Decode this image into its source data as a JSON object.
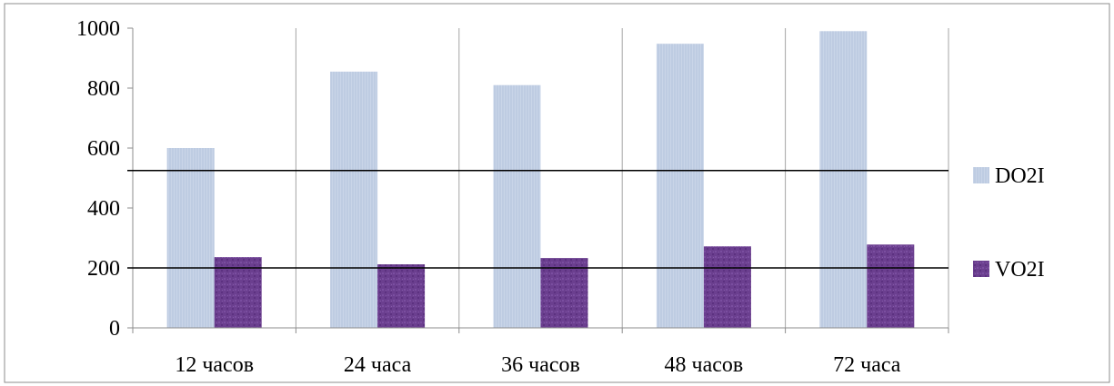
{
  "chart_data": {
    "type": "bar",
    "categories": [
      "12 часов",
      "24 часа",
      "36 часов",
      "48 часов",
      "72 часа"
    ],
    "series": [
      {
        "name": "DO2I",
        "values": [
          600,
          855,
          810,
          948,
          990
        ],
        "color": "#c5d2e6"
      },
      {
        "name": "VO2I",
        "values": [
          236,
          212,
          233,
          272,
          278
        ],
        "color": "#6a3d8f"
      }
    ],
    "ylim": [
      0,
      1000
    ],
    "yticks": [
      "0",
      "200",
      "400",
      "600",
      "800",
      "1000"
    ],
    "reference_lines": [
      525,
      200
    ],
    "grid": {
      "vertical": true,
      "horizontal": false
    },
    "legend_position": "right"
  }
}
